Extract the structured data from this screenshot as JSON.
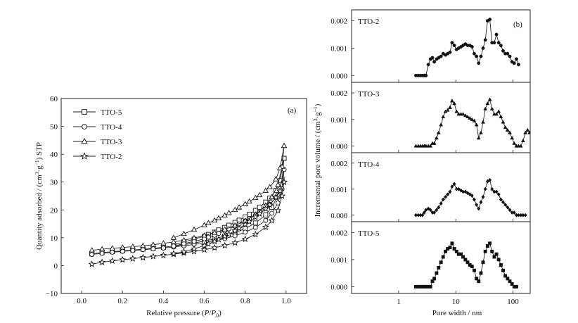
{
  "chart_data": [
    {
      "type": "line",
      "panel_label": "(a)",
      "xlabel_main": "Relative pressure (",
      "xlabel_p": "P",
      "xlabel_slash": "/",
      "xlabel_p0": "P",
      "xlabel_p0_sub": "0",
      "xlabel_end": ")",
      "ylabel_main": "Quantity adsorbed / (cm",
      "ylabel_sup1": "3",
      "ylabel_mid": "·g",
      "ylabel_sup2": "−1",
      "ylabel_end": ") STP",
      "xlim": [
        -0.1,
        1.1
      ],
      "ylim": [
        -10,
        60
      ],
      "xticks": [
        "0.0",
        "0.2",
        "0.4",
        "0.6",
        "0.8",
        "1.0"
      ],
      "yticks": [
        "−10",
        "0",
        "10",
        "20",
        "30",
        "40",
        "50",
        "60"
      ],
      "legend_position": "top-left",
      "series": [
        {
          "name": "TTO-5",
          "marker": "square",
          "adsorption": {
            "x": [
              0.05,
              0.1,
              0.15,
              0.2,
              0.25,
              0.3,
              0.35,
              0.4,
              0.45,
              0.5,
              0.55,
              0.6,
              0.65,
              0.7,
              0.75,
              0.8,
              0.85,
              0.9,
              0.93,
              0.96,
              0.98,
              0.99
            ],
            "y": [
              4.2,
              4.7,
              5.0,
              5.3,
              5.6,
              5.9,
              6.2,
              6.6,
              7.0,
              7.5,
              8.1,
              8.8,
              9.6,
              10.6,
              11.8,
              13.3,
              15.3,
              18.2,
              21.0,
              25.0,
              31.0,
              38.5
            ]
          },
          "desorption": {
            "x": [
              0.99,
              0.97,
              0.95,
              0.92,
              0.9,
              0.87,
              0.85,
              0.82,
              0.8,
              0.77,
              0.75,
              0.72,
              0.7,
              0.67,
              0.65,
              0.62,
              0.6,
              0.55,
              0.5,
              0.45
            ],
            "y": [
              38.5,
              30.5,
              27.0,
              24.2,
              22.8,
              21.0,
              19.8,
              18.4,
              17.5,
              16.3,
              15.5,
              14.5,
              13.7,
              12.8,
              12.0,
              11.2,
              10.5,
              9.5,
              8.5,
              7.4
            ]
          }
        },
        {
          "name": "TTO-4",
          "marker": "circle",
          "adsorption": {
            "x": [
              0.05,
              0.1,
              0.15,
              0.2,
              0.25,
              0.3,
              0.35,
              0.4,
              0.45,
              0.5,
              0.55,
              0.6,
              0.65,
              0.7,
              0.75,
              0.8,
              0.85,
              0.9,
              0.93,
              0.96,
              0.98,
              0.99
            ],
            "y": [
              4.0,
              4.4,
              4.8,
              5.1,
              5.4,
              5.7,
              6.0,
              6.3,
              6.7,
              7.1,
              7.6,
              8.2,
              8.9,
              9.7,
              10.7,
              12.0,
              13.7,
              16.2,
              18.8,
              22.5,
              27.5,
              34.5
            ]
          },
          "desorption": {
            "x": [
              0.99,
              0.97,
              0.95,
              0.92,
              0.9,
              0.87,
              0.85,
              0.82,
              0.8,
              0.77,
              0.75,
              0.72,
              0.7,
              0.67,
              0.65,
              0.62,
              0.6,
              0.55,
              0.5,
              0.45
            ],
            "y": [
              34.5,
              27.5,
              24.5,
              22.0,
              20.8,
              19.2,
              18.1,
              16.8,
              16.0,
              14.9,
              14.1,
              13.2,
              12.5,
              11.6,
              10.9,
              10.2,
              9.6,
              8.7,
              7.9,
              7.0
            ]
          }
        },
        {
          "name": "TTO-3",
          "marker": "triangle",
          "adsorption": {
            "x": [
              0.05,
              0.1,
              0.15,
              0.2,
              0.25,
              0.3,
              0.35,
              0.4,
              0.45,
              0.5,
              0.55,
              0.6,
              0.65,
              0.7,
              0.75,
              0.8,
              0.85,
              0.9,
              0.93,
              0.96,
              0.98,
              0.99
            ],
            "y": [
              5.5,
              5.9,
              6.2,
              6.5,
              6.8,
              7.1,
              7.5,
              8.0,
              8.5,
              9.1,
              9.9,
              10.8,
              11.8,
              13.0,
              14.4,
              16.1,
              18.3,
              21.5,
              24.6,
              29.0,
              35.5,
              43.0
            ]
          },
          "desorption": {
            "x": [
              0.99,
              0.97,
              0.95,
              0.92,
              0.9,
              0.87,
              0.85,
              0.82,
              0.8,
              0.77,
              0.75,
              0.72,
              0.7,
              0.67,
              0.65,
              0.62,
              0.6,
              0.55,
              0.5,
              0.45
            ],
            "y": [
              43.0,
              35.0,
              31.0,
              28.2,
              26.9,
              25.3,
              24.3,
              23.0,
              22.1,
              20.9,
              20.0,
              18.9,
              18.0,
              17.0,
              16.2,
              15.3,
              14.5,
              12.9,
              11.4,
              10.0
            ]
          }
        },
        {
          "name": "TTO-2",
          "marker": "star",
          "adsorption": {
            "x": [
              0.05,
              0.1,
              0.15,
              0.2,
              0.25,
              0.3,
              0.35,
              0.4,
              0.45,
              0.5,
              0.55,
              0.6,
              0.65,
              0.7,
              0.75,
              0.8,
              0.85,
              0.9,
              0.93,
              0.96,
              0.98,
              0.99
            ],
            "y": [
              0.5,
              1.2,
              1.7,
              2.1,
              2.5,
              2.9,
              3.3,
              3.7,
              4.1,
              4.6,
              5.1,
              5.7,
              6.4,
              7.2,
              8.2,
              9.5,
              11.2,
              13.8,
              16.2,
              19.8,
              25.0,
              30.0
            ]
          },
          "desorption": {
            "x": [
              0.99,
              0.97,
              0.95,
              0.92,
              0.9,
              0.87,
              0.85,
              0.82,
              0.8,
              0.77,
              0.75,
              0.72,
              0.7,
              0.67,
              0.65,
              0.62,
              0.6,
              0.55,
              0.5,
              0.45
            ],
            "y": [
              30.0,
              26.8,
              24.5,
              21.8,
              20.4,
              18.6,
              17.4,
              15.8,
              14.8,
              13.4,
              12.5,
              11.3,
              10.5,
              9.4,
              8.7,
              7.8,
              7.2,
              6.0,
              5.0,
              4.3
            ]
          }
        }
      ]
    },
    {
      "type": "line",
      "panel_label": "(b)",
      "xlabel": "Pore width / nm",
      "ylabel_main": "Incremental pore volume / (cm",
      "ylabel_sup1": "3",
      "ylabel_mid": "·g",
      "ylabel_sup2": "−1",
      "ylabel_end": ")",
      "xscale": "log",
      "xlim": [
        0.15,
        200
      ],
      "ylim": [
        -0.00025,
        0.0024
      ],
      "xticks": [
        "1",
        "10",
        "100"
      ],
      "yticks": [
        "0.000",
        "0.001",
        "0.002"
      ],
      "panels": [
        {
          "name": "TTO-2",
          "marker": "circle-filled",
          "x": [
            2.0,
            2.2,
            2.4,
            2.6,
            2.8,
            3.0,
            3.3,
            3.6,
            3.9,
            4.2,
            4.6,
            5.0,
            5.5,
            6.0,
            6.6,
            7.2,
            7.9,
            8.6,
            9.4,
            10.3,
            11.2,
            12.3,
            13.4,
            14.7,
            16.1,
            17.6,
            19.2,
            21.0,
            23.0,
            25.1,
            27.5,
            30.0,
            32.8,
            35.9,
            39.3,
            43.0,
            47.0,
            51.4,
            56.2,
            61.5,
            67.2,
            73.5,
            80.4,
            88.0,
            96.2,
            105.0,
            115.0,
            125.0
          ],
          "y": [
            0.0,
            0.0,
            0.0,
            0.0,
            0.0,
            0.0,
            0.0004,
            0.0006,
            0.00065,
            0.0005,
            0.0006,
            0.00065,
            0.0007,
            0.0008,
            0.00075,
            0.0008,
            0.00085,
            0.0012,
            0.0011,
            0.00095,
            0.001,
            0.00105,
            0.0011,
            0.00115,
            0.0011,
            0.0011,
            0.00105,
            0.0008,
            0.0007,
            0.00045,
            0.0007,
            0.001,
            0.0013,
            0.002,
            0.00205,
            0.0012,
            0.0012,
            0.0015,
            0.0012,
            0.0011,
            0.0009,
            0.0008,
            0.0008,
            0.0007,
            0.0005,
            0.00045,
            0.0006,
            0.0004
          ]
        },
        {
          "name": "TTO-3",
          "marker": "triangle-filled",
          "x": [
            2.0,
            2.2,
            2.4,
            2.6,
            2.8,
            3.0,
            3.3,
            3.6,
            3.9,
            4.2,
            4.6,
            5.0,
            5.5,
            6.0,
            6.6,
            7.2,
            7.9,
            8.6,
            9.4,
            10.3,
            11.2,
            12.3,
            13.4,
            14.7,
            16.1,
            17.6,
            19.2,
            21.0,
            23.0,
            25.1,
            27.5,
            30.0,
            32.8,
            35.9,
            39.3,
            43.0,
            47.0,
            51.4,
            56.2,
            61.5,
            67.2,
            73.5,
            80.4,
            88.0,
            96.2,
            105.0,
            115.0,
            125.0,
            137.0,
            150.0,
            165.0,
            180.0,
            195.0
          ],
          "y": [
            0.0,
            0.0,
            0.0,
            0.0,
            0.0,
            0.0,
            0.0,
            0.0,
            0.0001,
            0.0001,
            0.0003,
            0.0005,
            0.0008,
            0.0011,
            0.0013,
            0.00135,
            0.00145,
            0.0017,
            0.0016,
            0.0013,
            0.0012,
            0.0012,
            0.0012,
            0.00115,
            0.0011,
            0.00105,
            0.001,
            0.00095,
            0.0008,
            0.0003,
            0.0005,
            0.0009,
            0.0014,
            0.0016,
            0.00175,
            0.0014,
            0.0012,
            0.0012,
            0.0013,
            0.0011,
            0.0009,
            0.0007,
            0.0006,
            0.0005,
            0.0003,
            0.0001,
            0.0,
            0.0,
            0.0,
            0.0002,
            0.0005,
            0.0006,
            0.0005
          ]
        },
        {
          "name": "TTO-4",
          "marker": "diamond-filled",
          "x": [
            2.0,
            2.2,
            2.4,
            2.6,
            2.8,
            3.0,
            3.3,
            3.6,
            3.9,
            4.2,
            4.6,
            5.0,
            5.5,
            6.0,
            6.6,
            7.2,
            7.9,
            8.6,
            9.4,
            10.3,
            11.2,
            12.3,
            13.4,
            14.7,
            16.1,
            17.6,
            19.2,
            21.0,
            23.0,
            25.1,
            27.5,
            30.0,
            32.8,
            35.9,
            39.3,
            43.0,
            47.0,
            51.4,
            56.2,
            61.5,
            67.2,
            73.5,
            80.4,
            88.0,
            96.2,
            105.0,
            115.0,
            125.0,
            137.0,
            150.0,
            165.0
          ],
          "y": [
            0.0,
            0.0,
            0.0,
            0.0,
            0.0001,
            0.0002,
            0.00025,
            0.0002,
            0.0001,
            0.0001,
            0.0002,
            0.0003,
            0.00045,
            0.0006,
            0.0007,
            0.0008,
            0.0009,
            0.0011,
            0.0012,
            0.001,
            0.001,
            0.00095,
            0.0009,
            0.0009,
            0.00085,
            0.0008,
            0.00075,
            0.0006,
            0.0004,
            0.00025,
            0.0005,
            0.0007,
            0.001,
            0.0013,
            0.00135,
            0.001,
            0.0009,
            0.0009,
            0.0008,
            0.0006,
            0.0005,
            0.0004,
            0.0003,
            0.0002,
            0.0001,
            0.0001,
            0.0,
            0.0,
            0.0,
            0.0,
            0.0
          ]
        },
        {
          "name": "TTO-5",
          "marker": "square-filled",
          "x": [
            2.0,
            2.2,
            2.4,
            2.6,
            2.8,
            3.0,
            3.3,
            3.6,
            3.9,
            4.2,
            4.6,
            5.0,
            5.5,
            6.0,
            6.6,
            7.2,
            7.9,
            8.6,
            9.4,
            10.3,
            11.2,
            12.3,
            13.4,
            14.7,
            16.1,
            17.6,
            19.2,
            21.0,
            23.0,
            25.1,
            27.5,
            30.0,
            32.8,
            35.9,
            39.3,
            43.0,
            47.0,
            51.4,
            56.2,
            61.5,
            67.2,
            73.5,
            80.4,
            88.0,
            96.2,
            105.0,
            115.0
          ],
          "y": [
            0.0,
            0.0,
            0.0,
            0.0,
            0.0,
            0.0,
            0.0,
            0.0,
            0.0002,
            0.0003,
            0.0005,
            0.0007,
            0.0009,
            0.0011,
            0.0013,
            0.0014,
            0.00145,
            0.0016,
            0.0014,
            0.0013,
            0.0012,
            0.0012,
            0.0011,
            0.001,
            0.0009,
            0.0008,
            0.00075,
            0.0006,
            0.0003,
            0.0002,
            0.0005,
            0.0009,
            0.0013,
            0.0015,
            0.0016,
            0.0013,
            0.0011,
            0.0012,
            0.001,
            0.0008,
            0.0006,
            0.0004,
            0.0003,
            0.0002,
            0.0001,
            0.0,
            0.0
          ]
        }
      ]
    }
  ]
}
